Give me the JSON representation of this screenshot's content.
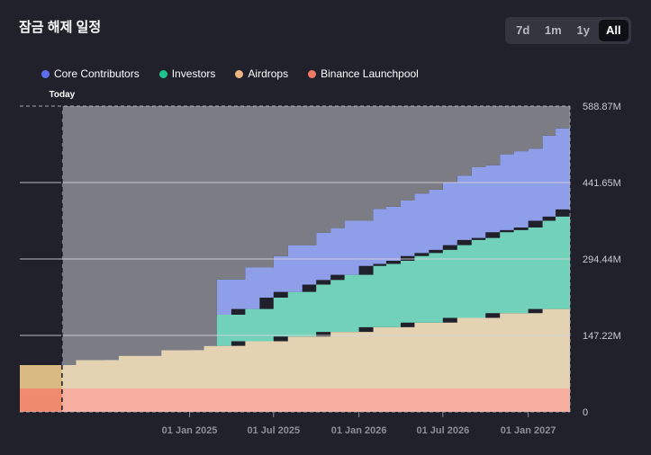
{
  "page": {
    "title": "잠금 해제 일정"
  },
  "time_range": {
    "options": [
      "7d",
      "1m",
      "1y",
      "All"
    ],
    "selected": "All"
  },
  "colors": {
    "background": "#20212b",
    "Core Contributors": "#8e9ee9",
    "Investors": "#72d2b9",
    "Airdrops": "#e3d3b2",
    "Binance Launchpool": "#f7b09f",
    "past_shade": "#7b7c84"
  },
  "legend_dot_colors": [
    "#5b6ef0",
    "#1ec28a",
    "#f2b482",
    "#f07a66"
  ],
  "chart_data": {
    "type": "area",
    "title": "잠금 해제 일정",
    "today_label": "Today",
    "x_domain": [
      "2024-01-01",
      "2027-04-01"
    ],
    "today_date": "2024-04-01",
    "xticks": [
      {
        "date": "2025-01-01",
        "label": "01 Jan 2025"
      },
      {
        "date": "2025-07-01",
        "label": "01 Jul 2025"
      },
      {
        "date": "2026-01-01",
        "label": "01 Jan 2026"
      },
      {
        "date": "2026-07-01",
        "label": "01 Jul 2026"
      },
      {
        "date": "2027-01-01",
        "label": "01 Jan 2027"
      }
    ],
    "yticks": [
      {
        "value": 0,
        "label": "0"
      },
      {
        "value": 147.22,
        "label": "147.22M"
      },
      {
        "value": 294.44,
        "label": "294.44M"
      },
      {
        "value": 441.65,
        "label": "441.65M"
      },
      {
        "value": 588.87,
        "label": "588.87M"
      }
    ],
    "ylim": [
      0,
      588.87
    ],
    "unit": "M",
    "dates": [
      "2024-01-01",
      "2024-04-01",
      "2024-05-01",
      "2024-06-01",
      "2024-07-01",
      "2024-08-01",
      "2024-09-01",
      "2024-10-01",
      "2024-11-01",
      "2024-12-01",
      "2025-01-01",
      "2025-02-01",
      "2025-03-01",
      "2025-04-01",
      "2025-05-01",
      "2025-06-01",
      "2025-07-01",
      "2025-08-01",
      "2025-09-01",
      "2025-10-01",
      "2025-11-01",
      "2025-12-01",
      "2026-01-01",
      "2026-02-01",
      "2026-03-01",
      "2026-04-01",
      "2026-05-01",
      "2026-06-01",
      "2026-07-01",
      "2026-08-01",
      "2026-09-01",
      "2026-10-01",
      "2026-11-01",
      "2026-12-01",
      "2027-01-01",
      "2027-02-01",
      "2027-03-01",
      "2027-04-01"
    ],
    "series": [
      {
        "name": "Binance Launchpool",
        "values": [
          45,
          45,
          45,
          45,
          45,
          45,
          45,
          45,
          45,
          45,
          45,
          45,
          45,
          45,
          45,
          45,
          45,
          45,
          45,
          45,
          45,
          45,
          45,
          45,
          45,
          45,
          45,
          45,
          45,
          45,
          45,
          45,
          45,
          45,
          45,
          45,
          45,
          45
        ]
      },
      {
        "name": "Airdrops",
        "values": [
          45,
          45,
          55,
          55,
          55,
          63,
          63,
          63,
          74,
          74,
          74,
          82,
          82,
          82,
          91,
          91,
          91,
          100,
          100,
          100,
          109,
          109,
          109,
          118,
          118,
          118,
          127,
          127,
          127,
          136,
          136,
          136,
          145,
          145,
          145,
          153,
          153,
          153
        ]
      },
      {
        "name": "Investors",
        "values": [
          0,
          0,
          0,
          0,
          0,
          0,
          0,
          0,
          0,
          0,
          0,
          0,
          60,
          60,
          62,
          62,
          84,
          86,
          86,
          100,
          100,
          110,
          110,
          118,
          122,
          128,
          128,
          134,
          140,
          140,
          150,
          154,
          156,
          160,
          165,
          170,
          178,
          192
        ]
      },
      {
        "name": "Core Contributors",
        "values": [
          0,
          0,
          0,
          0,
          0,
          0,
          0,
          0,
          0,
          0,
          0,
          0,
          68,
          68,
          80,
          80,
          80,
          90,
          90,
          100,
          100,
          104,
          104,
          110,
          110,
          116,
          120,
          122,
          130,
          134,
          140,
          140,
          150,
          152,
          152,
          164,
          170,
          172
        ]
      }
    ]
  }
}
